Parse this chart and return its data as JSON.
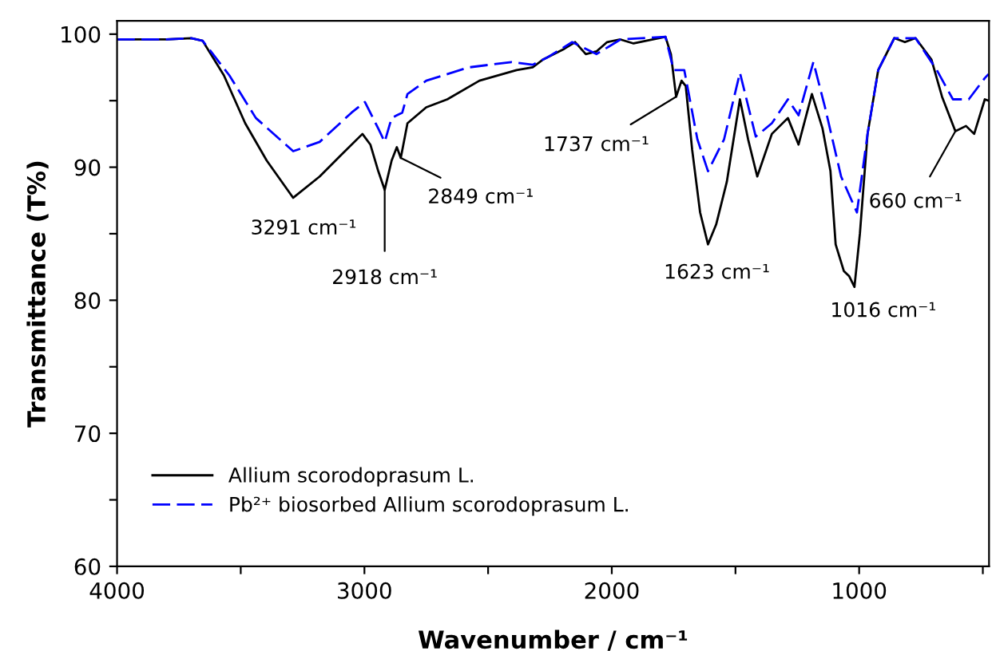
{
  "chart_data": {
    "type": "line",
    "xlabel": "Wavenumber / cm⁻¹",
    "ylabel": "Transmittance (T%)",
    "xlim": [
      4000,
      475
    ],
    "ylim": [
      60,
      101
    ],
    "xticks": [
      4000,
      {
        "value": 3500,
        "label": null
      },
      3000,
      {
        "value": 2500,
        "label": null
      },
      2000,
      {
        "value": 1500,
        "label": null
      },
      1000,
      {
        "value": 500,
        "label": null
      }
    ],
    "yticks": [
      60,
      {
        "value": 65,
        "label": null
      },
      70,
      {
        "value": 75,
        "label": null
      },
      80,
      {
        "value": 85,
        "label": null
      },
      90,
      {
        "value": 95,
        "label": null
      },
      100
    ],
    "grid": false,
    "legend": "bottom left",
    "marker": "none",
    "series": [
      {
        "name": "Allium scorodoprasum L.",
        "color": "#000000",
        "line_style": "solid",
        "x": [
          4000,
          3800,
          3700,
          3654,
          3568,
          3482,
          3395,
          3288,
          3181,
          3095,
          3008,
          2976,
          2944,
          2918,
          2890,
          2869,
          2853,
          2826,
          2750,
          2665,
          2535,
          2385,
          2320,
          2277,
          2192,
          2148,
          2105,
          2062,
          2019,
          1965,
          1912,
          1783,
          1761,
          1740,
          1718,
          1701,
          1675,
          1643,
          1611,
          1578,
          1535,
          1482,
          1449,
          1412,
          1353,
          1288,
          1245,
          1191,
          1148,
          1116,
          1095,
          1062,
          1040,
          1019,
          997,
          966,
          923,
          858,
          815,
          772,
          708,
          665,
          611,
          568,
          535,
          492,
          477
        ],
        "values": [
          99.6,
          99.6,
          99.7,
          99.5,
          96.9,
          93.3,
          90.5,
          87.7,
          89.3,
          90.9,
          92.5,
          91.7,
          89.7,
          88.3,
          90.5,
          91.5,
          90.7,
          93.3,
          94.5,
          95.1,
          96.5,
          97.3,
          97.5,
          98.1,
          98.9,
          99.4,
          98.5,
          98.7,
          99.4,
          99.6,
          99.3,
          99.8,
          98.5,
          95.3,
          96.5,
          96.1,
          91.3,
          86.6,
          84.2,
          85.7,
          88.9,
          95.1,
          92.1,
          89.3,
          92.5,
          93.7,
          91.7,
          95.5,
          92.9,
          89.7,
          84.2,
          82.2,
          81.8,
          81.0,
          85.0,
          92.5,
          97.3,
          99.7,
          99.4,
          99.7,
          98.1,
          95.3,
          92.7,
          93.1,
          92.5,
          95.1,
          95.0
        ]
      },
      {
        "name": "Pb²⁺ biosorbed Allium scorodoprasum L.",
        "color": "#0000ff",
        "line_style": "dashed",
        "x": [
          4000,
          3800,
          3700,
          3654,
          3546,
          3439,
          3288,
          3181,
          3052,
          2998,
          2944,
          2918,
          2890,
          2869,
          2847,
          2826,
          2750,
          2579,
          2406,
          2320,
          2256,
          2160,
          2062,
          1965,
          1783,
          1750,
          1707,
          1654,
          1611,
          1546,
          1482,
          1418,
          1353,
          1288,
          1245,
          1185,
          1138,
          1073,
          1009,
          966,
          923,
          858,
          772,
          686,
          621,
          557,
          492,
          477
        ],
        "values": [
          99.6,
          99.6,
          99.7,
          99.5,
          96.9,
          93.7,
          91.2,
          91.9,
          94.1,
          94.9,
          92.9,
          91.9,
          93.7,
          93.9,
          94.1,
          95.5,
          96.5,
          97.5,
          97.9,
          97.7,
          98.3,
          99.4,
          98.5,
          99.6,
          99.8,
          97.3,
          97.3,
          92.1,
          89.7,
          92.1,
          97.1,
          92.3,
          93.3,
          95.1,
          93.9,
          97.9,
          94.5,
          89.3,
          86.6,
          92.5,
          97.3,
          99.7,
          99.7,
          97.3,
          95.1,
          95.1,
          96.7,
          97.0
        ]
      }
    ],
    "annotations": [
      {
        "text": "3291 cm⁻¹",
        "x": 3291,
        "y": 87.7
      },
      {
        "text": "2918 cm⁻¹",
        "x": 2918,
        "y": 88.3
      },
      {
        "text": "2849 cm⁻¹",
        "x": 2853,
        "y": 90.7
      },
      {
        "text": "1737 cm⁻¹",
        "x": 1740,
        "y": 95.3
      },
      {
        "text": "1623 cm⁻¹",
        "x": 1611,
        "y": 84.2
      },
      {
        "text": "1016 cm⁻¹",
        "x": 1019,
        "y": 81.0
      },
      {
        "text": "660 cm⁻¹",
        "x": 611,
        "y": 92.7
      }
    ]
  }
}
